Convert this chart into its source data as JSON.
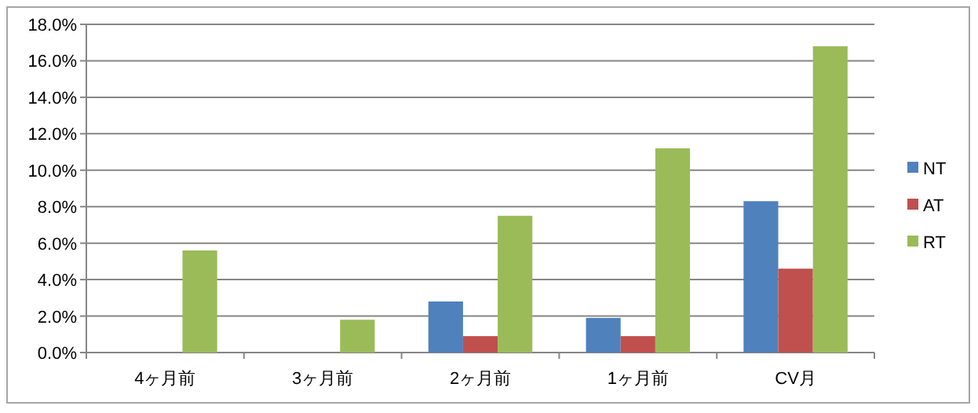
{
  "chart_data": {
    "type": "bar",
    "categories": [
      "4ヶ月前",
      "3ヶ月前",
      "2ヶ月前",
      "1ヶ月前",
      "CV月"
    ],
    "series": [
      {
        "name": "NT",
        "color": "#4f81bd",
        "values": [
          null,
          null,
          2.8,
          1.9,
          8.3
        ]
      },
      {
        "name": "AT",
        "color": "#c0504d",
        "values": [
          null,
          null,
          0.9,
          0.9,
          4.6
        ]
      },
      {
        "name": "RT",
        "color": "#9bbb59",
        "values": [
          5.6,
          1.8,
          7.5,
          11.2,
          16.8
        ]
      }
    ],
    "ylim": [
      0,
      18
    ],
    "yticks": [
      {
        "value": 0,
        "label": "0.0%"
      },
      {
        "value": 2,
        "label": "2.0%"
      },
      {
        "value": 4,
        "label": "4.0%"
      },
      {
        "value": 6,
        "label": "6.0%"
      },
      {
        "value": 8,
        "label": "8.0%"
      },
      {
        "value": 10,
        "label": "10.0%"
      },
      {
        "value": 12,
        "label": "12.0%"
      },
      {
        "value": 14,
        "label": "14.0%"
      },
      {
        "value": 16,
        "label": "16.0%"
      },
      {
        "value": 18,
        "label": "18.0%"
      }
    ],
    "grid": "y",
    "legend": "right"
  }
}
